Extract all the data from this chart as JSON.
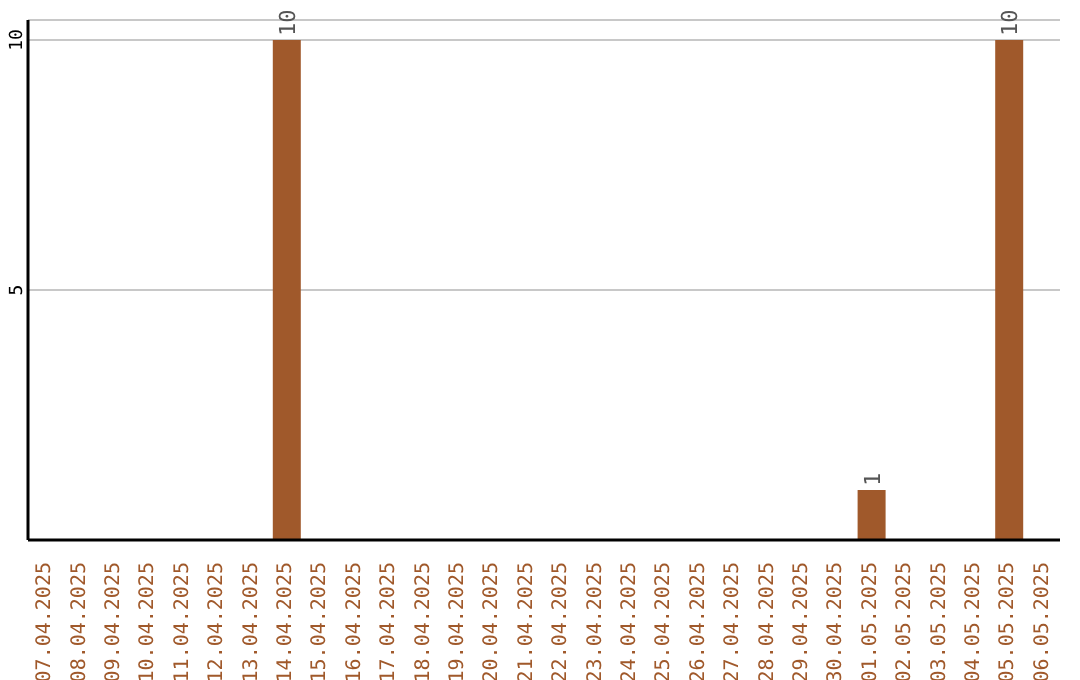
{
  "chart_data": {
    "type": "bar",
    "categories": [
      "07.04.2025",
      "08.04.2025",
      "09.04.2025",
      "10.04.2025",
      "11.04.2025",
      "12.04.2025",
      "13.04.2025",
      "14.04.2025",
      "15.04.2025",
      "16.04.2025",
      "17.04.2025",
      "18.04.2025",
      "19.04.2025",
      "20.04.2025",
      "21.04.2025",
      "22.04.2025",
      "23.04.2025",
      "24.04.2025",
      "25.04.2025",
      "26.04.2025",
      "27.04.2025",
      "28.04.2025",
      "29.04.2025",
      "30.04.2025",
      "01.05.2025",
      "02.05.2025",
      "03.05.2025",
      "04.05.2025",
      "05.05.2025",
      "06.05.2025"
    ],
    "values": [
      0,
      0,
      0,
      0,
      0,
      0,
      0,
      10,
      0,
      0,
      0,
      0,
      0,
      0,
      0,
      0,
      0,
      0,
      0,
      0,
      0,
      0,
      0,
      0,
      1,
      0,
      0,
      0,
      10,
      0
    ],
    "value_labels": [
      null,
      null,
      null,
      null,
      null,
      null,
      null,
      "10",
      null,
      null,
      null,
      null,
      null,
      null,
      null,
      null,
      null,
      null,
      null,
      null,
      null,
      null,
      null,
      null,
      "1",
      null,
      null,
      null,
      "10",
      null
    ],
    "color": "#a0592b",
    "ylim": [
      0,
      10.4
    ],
    "yticks": [
      5,
      10
    ],
    "grid": "y"
  }
}
